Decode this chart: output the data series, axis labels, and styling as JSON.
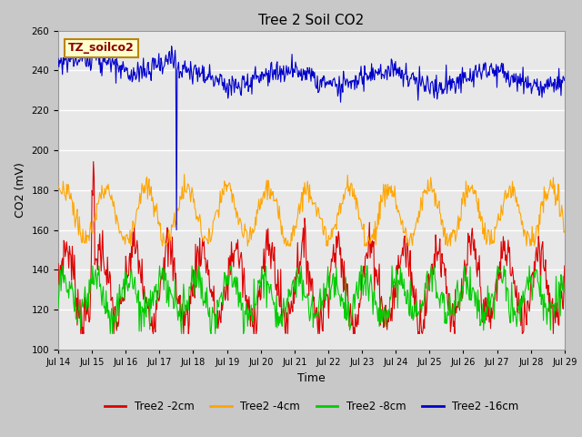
{
  "title": "Tree 2 Soil CO2",
  "xlabel": "Time",
  "ylabel": "CO2 (mV)",
  "annotation_text": "TZ_soilco2",
  "annotation_color": "#8B0000",
  "annotation_bg": "#FFFFCC",
  "annotation_border": "#B8860B",
  "ylim": [
    100,
    260
  ],
  "yticks": [
    100,
    120,
    140,
    160,
    180,
    200,
    220,
    240,
    260
  ],
  "fig_bg": "#C8C8C8",
  "axes_bg": "#E8E8E8",
  "grid_color": "#FFFFFF",
  "series": [
    {
      "name": "Tree2 -2cm",
      "color": "#DD0000"
    },
    {
      "name": "Tree2 -4cm",
      "color": "#FFA500"
    },
    {
      "name": "Tree2 -8cm",
      "color": "#00CC00"
    },
    {
      "name": "Tree2 -16cm",
      "color": "#0000CC"
    }
  ],
  "xlim": [
    14,
    29
  ],
  "xtick_positions": [
    14,
    15,
    16,
    17,
    18,
    19,
    20,
    21,
    22,
    23,
    24,
    25,
    26,
    27,
    28,
    29
  ],
  "xtick_labels": [
    "Jul 14",
    "Jul 15",
    "Jul 16",
    "Jul 17",
    "Jul 18",
    "Jul 19",
    "Jul 20",
    "Jul 21",
    "Jul 22",
    "Jul 23",
    "Jul 24",
    "Jul 25",
    "Jul 26",
    "Jul 27",
    "Jul 28",
    "Jul 29"
  ],
  "figsize": [
    6.4,
    4.8
  ],
  "dpi": 100
}
